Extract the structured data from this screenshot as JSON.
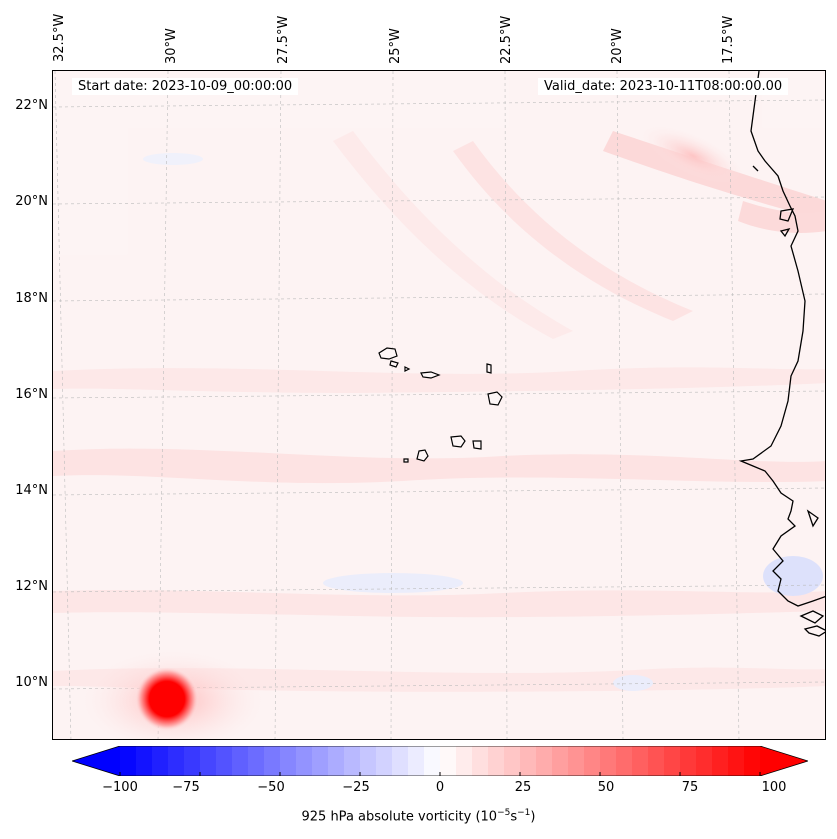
{
  "header": {
    "start_date": "Start date: 2023-10-09_00:00:00",
    "valid_date": "Valid_date: 2023-10-11T08:00:00.00"
  },
  "longitude_labels": [
    "32.5°W",
    "30°W",
    "27.5°W",
    "25°W",
    "22.5°W",
    "20°W",
    "17.5°W"
  ],
  "latitude_labels": [
    "22°N",
    "20°N",
    "18°N",
    "16°N",
    "14°N",
    "12°N",
    "10°N"
  ],
  "colorbar": {
    "label_prefix": "925 hPa absolute vorticity (10",
    "label_exp1": "−5",
    "label_mid": "s",
    "label_exp2": "−1",
    "label_suffix": ")",
    "ticks": [
      "−100",
      "−75",
      "−50",
      "−25",
      "0",
      "25",
      "50",
      "75",
      "100"
    ],
    "min": -100,
    "max": 100,
    "step": 5,
    "low_color": "#0000ff",
    "mid_color": "#ffffff",
    "high_color": "#ff0000"
  },
  "map": {
    "background_color": "#fdf6f6",
    "coastline_color": "#000000",
    "vortex_color": "#ff0000",
    "features": [
      "cape-verde-islands",
      "west-african-coastline",
      "tropical-vortex"
    ]
  }
}
